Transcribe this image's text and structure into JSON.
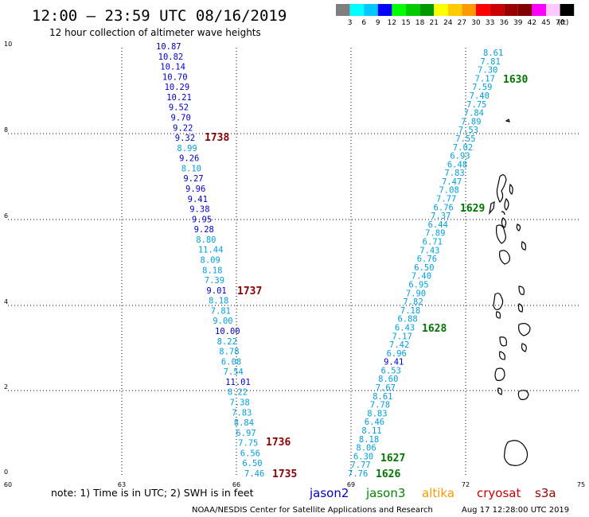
{
  "header": {
    "title": "12:00 – 23:59 UTC 08/16/2019",
    "subtitle": "12 hour collection of altimeter wave heights"
  },
  "colorbar": {
    "colors": [
      "#7f7f7f",
      "#00ffff",
      "#00c8ff",
      "#0000ff",
      "#00ff00",
      "#00cc00",
      "#009900",
      "#ffff00",
      "#ffcc00",
      "#ff9900",
      "#ff0000",
      "#cc0000",
      "#990000",
      "#800000",
      "#ff00ff",
      "#ffc8ff",
      "#000000"
    ],
    "labels": [
      "3",
      "6",
      "9",
      "12",
      "15",
      "18",
      "21",
      "24",
      "27",
      "30",
      "33",
      "36",
      "39",
      "42",
      "45",
      "70"
    ],
    "unit": "(ft)"
  },
  "axes": {
    "x_ticks": [
      "60",
      "63",
      "66",
      "69",
      "72",
      "75"
    ],
    "y_ticks": [
      "0",
      "2",
      "4",
      "6",
      "8",
      "10"
    ]
  },
  "tracks": {
    "left": {
      "swh": [
        "10.87",
        "10.82",
        "10.14",
        "10.70",
        "10.29",
        "10.21",
        "9.52",
        "9.70",
        "9.22",
        "9.32",
        "8.99",
        "9.26",
        "8.10",
        "9.27",
        "9.96",
        "9.41",
        "9.38",
        "9.95",
        "9.28",
        "8.80",
        "11.44",
        "8.09",
        "8.18",
        "7.39",
        "9.01",
        "8.18",
        "7.81",
        "9.00",
        "10.00",
        "8.22",
        "8.78",
        "6.08",
        "7.54",
        "11.01",
        "8.22",
        "7.38",
        "7.83",
        "8.84",
        "6.97",
        "7.75",
        "6.56",
        "6.50",
        "7.46"
      ],
      "colors": [
        "d",
        "d",
        "d",
        "d",
        "d",
        "d",
        "d",
        "d",
        "d",
        "d",
        "c",
        "d",
        "c",
        "d",
        "d",
        "d",
        "d",
        "d",
        "d",
        "c",
        "c",
        "c",
        "c",
        "c",
        "d",
        "c",
        "c",
        "c",
        "d",
        "c",
        "c",
        "c",
        "c",
        "d",
        "c",
        "c",
        "c",
        "c",
        "c",
        "c",
        "c",
        "c",
        "c"
      ]
    },
    "right": {
      "swh": [
        "8.61",
        "7.81",
        "7.30",
        "7.17",
        "7.59",
        "7.40",
        "7.75",
        "7.84",
        "7.89",
        "7.53",
        "7.55",
        "7.02",
        "6.93",
        "6.48",
        "7.83",
        "7.47",
        "7.08",
        "7.77",
        "6.76",
        "7.37",
        "6.44",
        "7.89",
        "6.71",
        "7.43",
        "6.76",
        "6.50",
        "7.40",
        "6.95",
        "7.90",
        "7.82",
        "7.18",
        "6.88",
        "6.43",
        "7.17",
        "7.42",
        "6.96",
        "9.41",
        "6.53",
        "8.60",
        "7.67",
        "8.61",
        "7.78",
        "8.83",
        "6.46",
        "8.11",
        "8.18",
        "8.06",
        "6.30",
        "7.77",
        "7.76"
      ],
      "colors": [
        "c",
        "c",
        "c",
        "c",
        "c",
        "c",
        "c",
        "c",
        "c",
        "c",
        "c",
        "c",
        "c",
        "c",
        "c",
        "c",
        "c",
        "c",
        "c",
        "c",
        "c",
        "c",
        "c",
        "c",
        "c",
        "c",
        "c",
        "c",
        "c",
        "c",
        "c",
        "c",
        "c",
        "c",
        "c",
        "c",
        "d",
        "c",
        "c",
        "c",
        "c",
        "c",
        "c",
        "c",
        "c",
        "c",
        "c",
        "c",
        "c",
        "c"
      ]
    }
  },
  "time_labels": {
    "cryosat": [
      "1738",
      "1737",
      "1736",
      "1735"
    ],
    "jason3": [
      "1630",
      "1629",
      "1628",
      "1627",
      "1626"
    ]
  },
  "legend": {
    "note": "note: 1) Time is in UTC; 2) SWH is in feet",
    "satellites": [
      {
        "name": "jason2",
        "color": "#0000cc"
      },
      {
        "name": "jason3",
        "color": "#008800"
      },
      {
        "name": "altika",
        "color": "#ff9900"
      },
      {
        "name": "cryosat",
        "color": "#cc0000"
      },
      {
        "name": "s3a",
        "color": "#990000"
      }
    ]
  },
  "footer": {
    "credit": "NOAA/NESDIS Center for Satellite Applications and Research",
    "timestamp": "Aug 17 12:28:00 UTC 2019"
  }
}
